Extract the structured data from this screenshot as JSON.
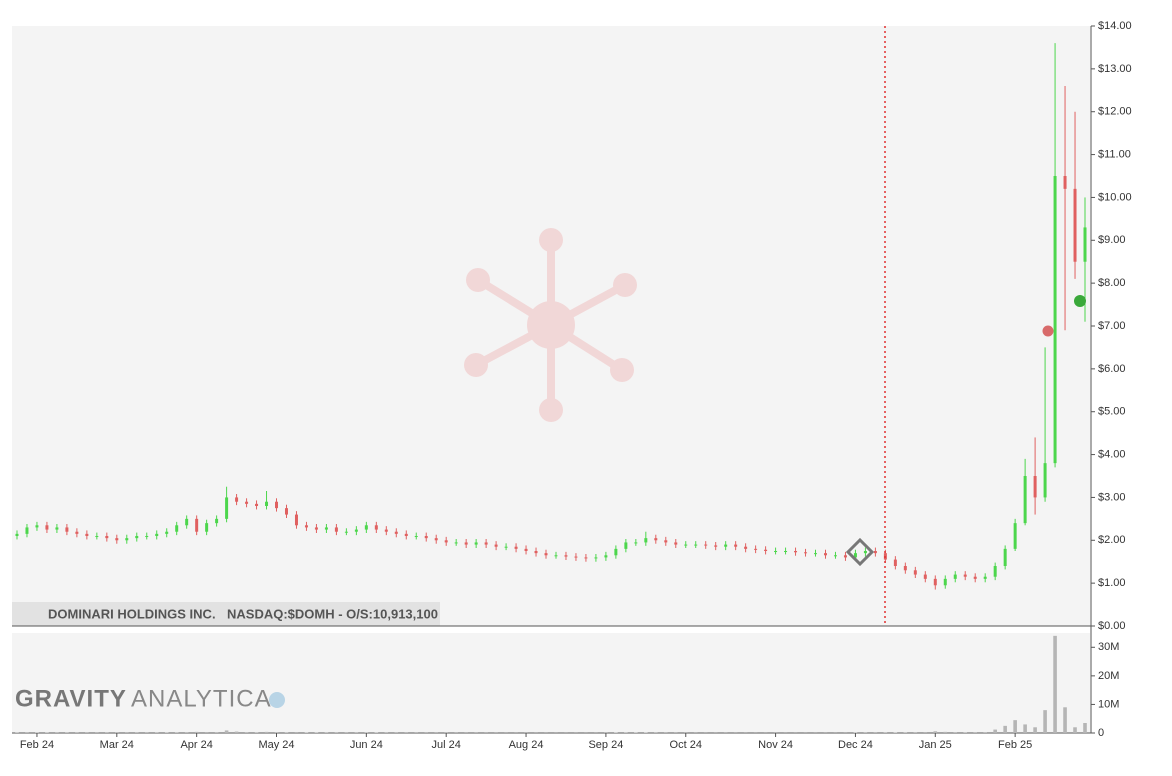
{
  "chart_data": {
    "type": "candlestick",
    "company": "DOMINARI HOLDINGS INC.",
    "info": "NASDAQ:$DOMH - O/S:10,913,100",
    "brand_bold": "GRAVITY",
    "brand_light": "ANALYTICA",
    "up_color": "#4cd64c",
    "down_color": "#e06060",
    "categories": [
      null,
      null,
      "Feb 24",
      null,
      null,
      null,
      null,
      null,
      null,
      null,
      "Mar 24",
      null,
      null,
      null,
      null,
      null,
      null,
      null,
      "Apr 24",
      null,
      null,
      null,
      null,
      null,
      null,
      null,
      "May 24",
      null,
      null,
      null,
      null,
      null,
      null,
      null,
      null,
      "Jun 24",
      null,
      null,
      null,
      null,
      null,
      null,
      null,
      "Jul 24",
      null,
      null,
      null,
      null,
      null,
      null,
      null,
      "Aug 24",
      null,
      null,
      null,
      null,
      null,
      null,
      null,
      "Sep 24",
      null,
      null,
      null,
      null,
      null,
      null,
      null,
      "Oct 24",
      null,
      null,
      null,
      null,
      null,
      null,
      null,
      null,
      "Nov 24",
      null,
      null,
      null,
      null,
      null,
      null,
      null,
      "Dec 24",
      null,
      null,
      null,
      null,
      null,
      null,
      null,
      "Jan 25",
      null,
      null,
      null,
      null,
      null,
      null,
      null,
      "Feb 25",
      null,
      null,
      null,
      null,
      null,
      null,
      null
    ],
    "open": [
      2.1,
      2.15,
      2.3,
      2.35,
      2.25,
      2.3,
      2.2,
      2.15,
      2.1,
      2.1,
      2.05,
      2.0,
      2.05,
      2.1,
      2.1,
      2.15,
      2.2,
      2.35,
      2.5,
      2.2,
      2.4,
      2.5,
      3.0,
      2.9,
      2.85,
      2.8,
      2.9,
      2.75,
      2.6,
      2.35,
      2.3,
      2.25,
      2.3,
      2.2,
      2.2,
      2.25,
      2.35,
      2.25,
      2.2,
      2.15,
      2.1,
      2.1,
      2.05,
      2.0,
      1.95,
      1.95,
      1.9,
      1.95,
      1.9,
      1.85,
      1.85,
      1.8,
      1.75,
      1.7,
      1.65,
      1.65,
      1.62,
      1.6,
      1.58,
      1.6,
      1.65,
      1.8,
      1.95,
      1.95,
      2.05,
      2.0,
      1.95,
      1.9,
      1.9,
      1.9,
      1.88,
      1.85,
      1.9,
      1.85,
      1.8,
      1.78,
      1.75,
      1.75,
      1.75,
      1.72,
      1.7,
      1.7,
      1.65,
      1.65,
      1.6,
      1.7,
      1.75,
      1.7,
      1.55,
      1.4,
      1.3,
      1.2,
      1.1,
      0.95,
      1.1,
      1.2,
      1.15,
      1.1,
      1.15,
      1.4,
      1.8,
      2.4,
      3.5,
      3.0,
      3.8,
      10.5,
      10.2,
      8.5
    ],
    "high": [
      2.23,
      2.38,
      2.43,
      2.43,
      2.38,
      2.38,
      2.28,
      2.23,
      2.18,
      2.18,
      2.13,
      2.13,
      2.18,
      2.18,
      2.23,
      2.28,
      2.43,
      2.58,
      2.58,
      2.48,
      2.58,
      3.25,
      3.08,
      2.98,
      2.93,
      3.15,
      2.98,
      2.83,
      2.68,
      2.43,
      2.38,
      2.38,
      2.38,
      2.28,
      2.33,
      2.43,
      2.43,
      2.33,
      2.28,
      2.23,
      2.18,
      2.18,
      2.13,
      2.08,
      2.03,
      2.03,
      2.03,
      2.03,
      1.98,
      1.93,
      1.93,
      1.88,
      1.83,
      1.78,
      1.73,
      1.73,
      1.7,
      1.68,
      1.68,
      1.73,
      1.88,
      2.03,
      2.03,
      2.2,
      2.13,
      2.08,
      2.03,
      1.98,
      1.98,
      1.98,
      1.96,
      1.98,
      1.98,
      1.93,
      1.88,
      1.86,
      1.83,
      1.83,
      1.83,
      1.8,
      1.78,
      1.78,
      1.73,
      1.73,
      1.78,
      1.83,
      1.83,
      1.78,
      1.63,
      1.48,
      1.38,
      1.28,
      1.18,
      1.18,
      1.28,
      1.28,
      1.23,
      1.23,
      1.48,
      1.88,
      2.5,
      3.9,
      4.4,
      6.5,
      13.6,
      12.6,
      12.0,
      10.0
    ],
    "low": [
      2.02,
      2.07,
      2.22,
      2.17,
      2.17,
      2.12,
      2.07,
      2.02,
      2.02,
      1.97,
      1.92,
      1.92,
      1.97,
      2.02,
      2.02,
      2.07,
      2.12,
      2.27,
      2.12,
      2.12,
      2.32,
      2.42,
      2.82,
      2.77,
      2.72,
      2.72,
      2.67,
      2.52,
      2.27,
      2.22,
      2.17,
      2.17,
      2.12,
      2.12,
      2.12,
      2.17,
      2.17,
      2.12,
      2.07,
      2.02,
      2.02,
      1.97,
      1.92,
      1.87,
      1.87,
      1.82,
      1.82,
      1.82,
      1.77,
      1.77,
      1.72,
      1.67,
      1.62,
      1.57,
      1.57,
      1.54,
      1.52,
      1.5,
      1.5,
      1.52,
      1.57,
      1.72,
      1.87,
      1.87,
      1.92,
      1.87,
      1.82,
      1.82,
      1.82,
      1.8,
      1.77,
      1.77,
      1.77,
      1.72,
      1.7,
      1.67,
      1.67,
      1.67,
      1.64,
      1.62,
      1.62,
      1.57,
      1.57,
      1.52,
      1.52,
      1.62,
      1.62,
      1.47,
      1.32,
      1.22,
      1.12,
      1.02,
      0.85,
      0.87,
      1.02,
      1.07,
      1.02,
      1.02,
      1.07,
      1.32,
      1.75,
      2.35,
      2.6,
      2.9,
      3.7,
      6.9,
      8.1,
      7.1
    ],
    "close": [
      2.15,
      2.3,
      2.35,
      2.25,
      2.3,
      2.2,
      2.15,
      2.1,
      2.1,
      2.05,
      2.0,
      2.05,
      2.1,
      2.1,
      2.15,
      2.2,
      2.35,
      2.5,
      2.2,
      2.4,
      2.5,
      3.0,
      2.9,
      2.85,
      2.8,
      2.9,
      2.75,
      2.6,
      2.35,
      2.3,
      2.25,
      2.3,
      2.2,
      2.2,
      2.25,
      2.35,
      2.25,
      2.2,
      2.15,
      2.1,
      2.1,
      2.05,
      2.0,
      1.95,
      1.95,
      1.9,
      1.95,
      1.9,
      1.85,
      1.85,
      1.8,
      1.75,
      1.7,
      1.65,
      1.65,
      1.62,
      1.6,
      1.58,
      1.6,
      1.65,
      1.8,
      1.95,
      1.95,
      2.05,
      2.0,
      1.95,
      1.9,
      1.9,
      1.9,
      1.88,
      1.85,
      1.9,
      1.85,
      1.8,
      1.78,
      1.75,
      1.75,
      1.75,
      1.72,
      1.7,
      1.7,
      1.65,
      1.65,
      1.6,
      1.7,
      1.75,
      1.7,
      1.55,
      1.4,
      1.3,
      1.2,
      1.1,
      0.95,
      1.1,
      1.2,
      1.15,
      1.1,
      1.15,
      1.4,
      1.8,
      2.4,
      3.5,
      3.0,
      3.8,
      10.5,
      10.2,
      8.5,
      9.3
    ],
    "ylim": [
      0,
      14
    ],
    "yticks": [
      {
        "value": 0,
        "label": "$0.00"
      },
      {
        "value": 1,
        "label": "$1.00"
      },
      {
        "value": 2,
        "label": "$2.00"
      },
      {
        "value": 3,
        "label": "$3.00"
      },
      {
        "value": 4,
        "label": "$4.00"
      },
      {
        "value": 5,
        "label": "$5.00"
      },
      {
        "value": 6,
        "label": "$6.00"
      },
      {
        "value": 7,
        "label": "$7.00"
      },
      {
        "value": 8,
        "label": "$8.00"
      },
      {
        "value": 9,
        "label": "$9.00"
      },
      {
        "value": 10,
        "label": "$10.00"
      },
      {
        "value": 11,
        "label": "$11.00"
      },
      {
        "value": 12,
        "label": "$12.00"
      },
      {
        "value": 13,
        "label": "$13.00"
      },
      {
        "value": 14,
        "label": "$14.00"
      }
    ],
    "volume": {
      "color": "#b5b5b5",
      "values": [
        150000,
        300000,
        200000,
        150000,
        100000,
        120000,
        100000,
        90000,
        80000,
        100000,
        90000,
        80000,
        100000,
        90000,
        120000,
        150000,
        250000,
        300000,
        400000,
        350000,
        300000,
        900000,
        500000,
        300000,
        250000,
        400000,
        300000,
        250000,
        350000,
        200000,
        150000,
        120000,
        100000,
        90000,
        100000,
        250000,
        150000,
        100000,
        90000,
        80000,
        80000,
        70000,
        70000,
        80000,
        70000,
        60000,
        70000,
        60000,
        60000,
        50000,
        50000,
        60000,
        50000,
        50000,
        40000,
        40000,
        50000,
        40000,
        50000,
        80000,
        200000,
        250000,
        150000,
        200000,
        100000,
        80000,
        70000,
        60000,
        60000,
        50000,
        50000,
        60000,
        50000,
        50000,
        40000,
        40000,
        50000,
        40000,
        40000,
        40000,
        40000,
        50000,
        40000,
        50000,
        150000,
        100000,
        80000,
        120000,
        200000,
        250000,
        300000,
        350000,
        600000,
        400000,
        300000,
        250000,
        300000,
        300000,
        1200000,
        2500000,
        4500000,
        3000000,
        2000000,
        8000000,
        34000000,
        9000000,
        2000000,
        3500000
      ],
      "ylim": [
        0,
        35000000
      ],
      "yticks": [
        0,
        {
          "value": 10000000,
          "label": "10M"
        },
        {
          "value": 20000000,
          "label": "20M"
        },
        {
          "value": 30000000,
          "label": "30M"
        }
      ]
    }
  }
}
